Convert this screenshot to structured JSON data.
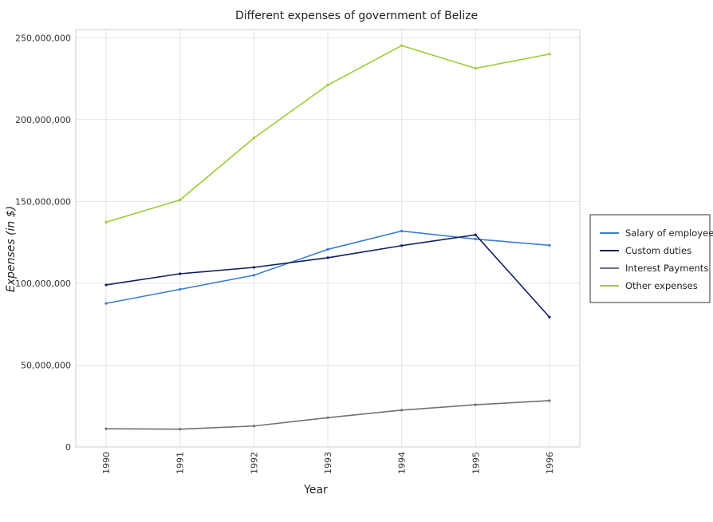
{
  "chart_data": {
    "type": "line",
    "title": "Different expenses of government of Belize",
    "xlabel": "Year",
    "ylabel": "Expenses (in $)",
    "categories": [
      "1990",
      "1991",
      "1992",
      "1993",
      "1994",
      "1995",
      "1996"
    ],
    "y_ticks": [
      0,
      50000000,
      100000000,
      150000000,
      200000000,
      250000000
    ],
    "y_tick_labels": [
      "0",
      "50,000,000",
      "100,000,000",
      "150,000,000",
      "200,000,000",
      "250,000,000"
    ],
    "ylim": [
      0,
      255000000
    ],
    "grid": true,
    "legend_position": "right",
    "series": [
      {
        "name": "Salary of employees",
        "color": "#3a7fd0",
        "values": [
          87700000,
          96300000,
          104900000,
          120700000,
          131900000,
          127000000,
          123200000
        ]
      },
      {
        "name": "Custom duties",
        "color": "#101e60",
        "values": [
          99000000,
          105800000,
          109700000,
          115600000,
          123000000,
          129600000,
          79300000
        ]
      },
      {
        "name": "Interest Payments",
        "color": "#6c737c",
        "values": [
          11100000,
          10900000,
          12800000,
          17900000,
          22500000,
          25800000,
          28300000
        ]
      },
      {
        "name": "Other expenses",
        "color": "#9acd32",
        "values": [
          137300000,
          150900000,
          188700000,
          221100000,
          245200000,
          231300000,
          240000000
        ]
      }
    ]
  }
}
